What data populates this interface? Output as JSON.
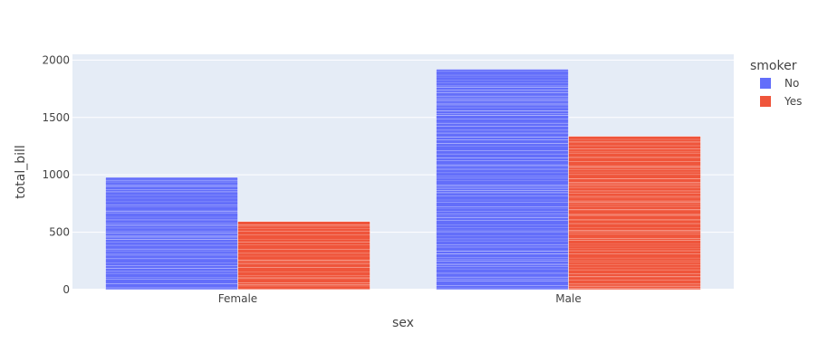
{
  "chart_data": {
    "type": "bar",
    "barmode": "group",
    "categories": [
      "Female",
      "Male"
    ],
    "series": [
      {
        "name": "No",
        "values": [
          978,
          1920
        ],
        "color": "#636efa"
      },
      {
        "name": "Yes",
        "values": [
          594,
          1336
        ],
        "color": "#ef553b"
      }
    ],
    "xlabel": "sex",
    "ylabel": "total_bill",
    "ylim": [
      0,
      2050
    ],
    "yticks": [
      0,
      500,
      1000,
      1500,
      2000
    ],
    "legend_title": "smoker",
    "legend_position": "top-right",
    "grid": true,
    "plot_bgcolor": "#e5ecf6",
    "bar_texture": "stacked-thin-segments"
  }
}
